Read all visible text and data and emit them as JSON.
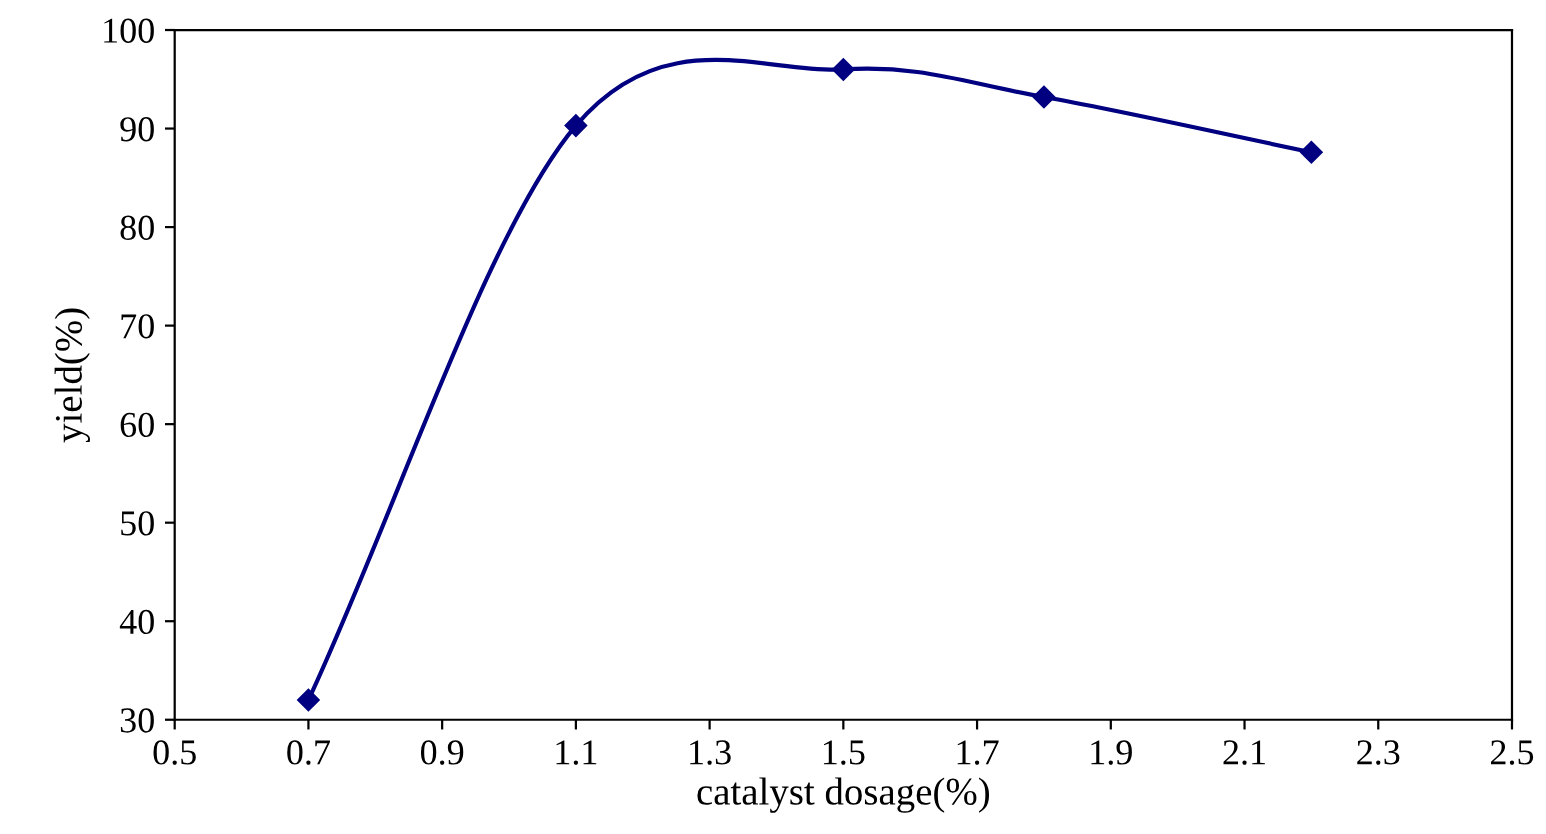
{
  "chart_data": {
    "type": "line",
    "xlabel": "catalyst dosage(%)",
    "ylabel": "yield(%)",
    "x": [
      0.7,
      1.1,
      1.5,
      1.8,
      2.2
    ],
    "series": [
      {
        "color": "#000080",
        "values": [
          32,
          90.3,
          96,
          93.2,
          87.6
        ]
      }
    ],
    "xlim": [
      0.5,
      2.5
    ],
    "xticks": [
      0.5,
      0.7,
      0.9,
      1.1,
      1.3,
      1.5,
      1.7,
      1.9,
      2.1,
      2.3,
      2.5
    ],
    "ylim": [
      30,
      100
    ],
    "yticks": [
      30,
      40,
      50,
      60,
      70,
      80,
      90,
      100
    ],
    "grid": false,
    "marker": "diamond",
    "line_style": "solid"
  }
}
